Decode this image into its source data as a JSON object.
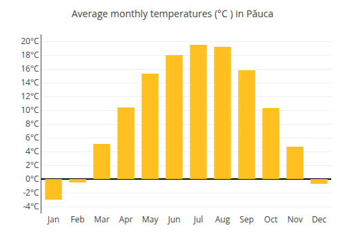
{
  "chart_data": {
    "type": "bar",
    "title": "Average monthly temperatures (°C ) in Păuca",
    "categories": [
      "Jan",
      "Feb",
      "Mar",
      "Apr",
      "May",
      "Jun",
      "Jul",
      "Aug",
      "Sep",
      "Oct",
      "Nov",
      "Dec"
    ],
    "values": [
      -3.0,
      -0.5,
      5.1,
      10.4,
      15.3,
      18.0,
      19.5,
      19.2,
      15.8,
      10.3,
      4.7,
      -0.7
    ],
    "color": "#FFC020",
    "ylim": [
      -5,
      21
    ],
    "yticks": [
      {
        "value": -4,
        "label": "-4°C"
      },
      {
        "value": -2,
        "label": "-2°C"
      },
      {
        "value": 0,
        "label": "0°C"
      },
      {
        "value": 2,
        "label": "2°C"
      },
      {
        "value": 4,
        "label": "4°C"
      },
      {
        "value": 6,
        "label": "6°C"
      },
      {
        "value": 8,
        "label": "8°C"
      },
      {
        "value": 10,
        "label": "10°C"
      },
      {
        "value": 12,
        "label": "12°C"
      },
      {
        "value": 14,
        "label": "14°C"
      },
      {
        "value": 16,
        "label": "16°C"
      },
      {
        "value": 18,
        "label": "18°C"
      },
      {
        "value": 20,
        "label": "20°C"
      }
    ],
    "grid": true
  }
}
